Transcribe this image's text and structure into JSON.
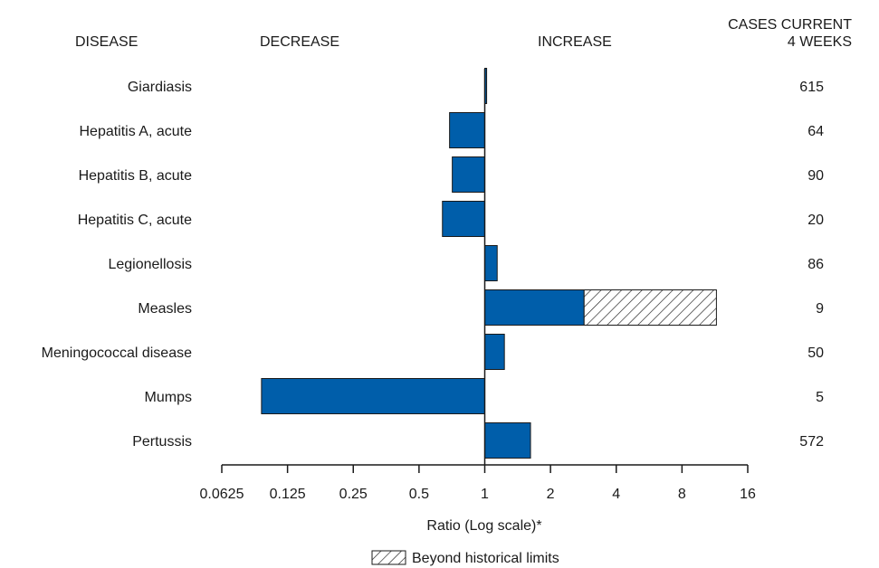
{
  "headers": {
    "disease": "DISEASE",
    "decrease": "DECREASE",
    "increase": "INCREASE",
    "cases_line1": "CASES CURRENT",
    "cases_line2": "4 WEEKS"
  },
  "colors": {
    "bar_fill": "#005eaa",
    "bar_stroke": "#1a1a1a",
    "hatch_stroke": "#1a1a1a",
    "text": "#1a1a1a"
  },
  "chart_data": {
    "type": "bar",
    "orientation": "horizontal",
    "x_scale": "log2",
    "xlim": [
      0.0625,
      16
    ],
    "xlabel": "Ratio (Log scale)*",
    "xticks": [
      0.0625,
      0.125,
      0.25,
      0.5,
      1,
      2,
      4,
      8,
      16
    ],
    "xtick_labels": [
      "0.0625",
      "0.125",
      "0.25",
      "0.5",
      "1",
      "2",
      "4",
      "8",
      "16"
    ],
    "baseline": 1,
    "categories": [
      "Giardiasis",
      "Hepatitis A, acute",
      "Hepatitis B, acute",
      "Hepatitis C, acute",
      "Legionellosis",
      "Measles",
      "Meningococcal disease",
      "Mumps",
      "Pertussis"
    ],
    "values": [
      1.02,
      0.69,
      0.71,
      0.64,
      1.14,
      2.85,
      1.23,
      0.095,
      1.62
    ],
    "beyond_historical_limits": [
      null,
      null,
      null,
      null,
      null,
      11.5,
      null,
      null,
      null
    ],
    "cases_current_4_weeks": [
      "615",
      "64",
      "90",
      "20",
      "86",
      "9",
      "50",
      "5",
      "572"
    ],
    "legend": {
      "label": "Beyond historical limits",
      "position": "bottom-center"
    }
  }
}
